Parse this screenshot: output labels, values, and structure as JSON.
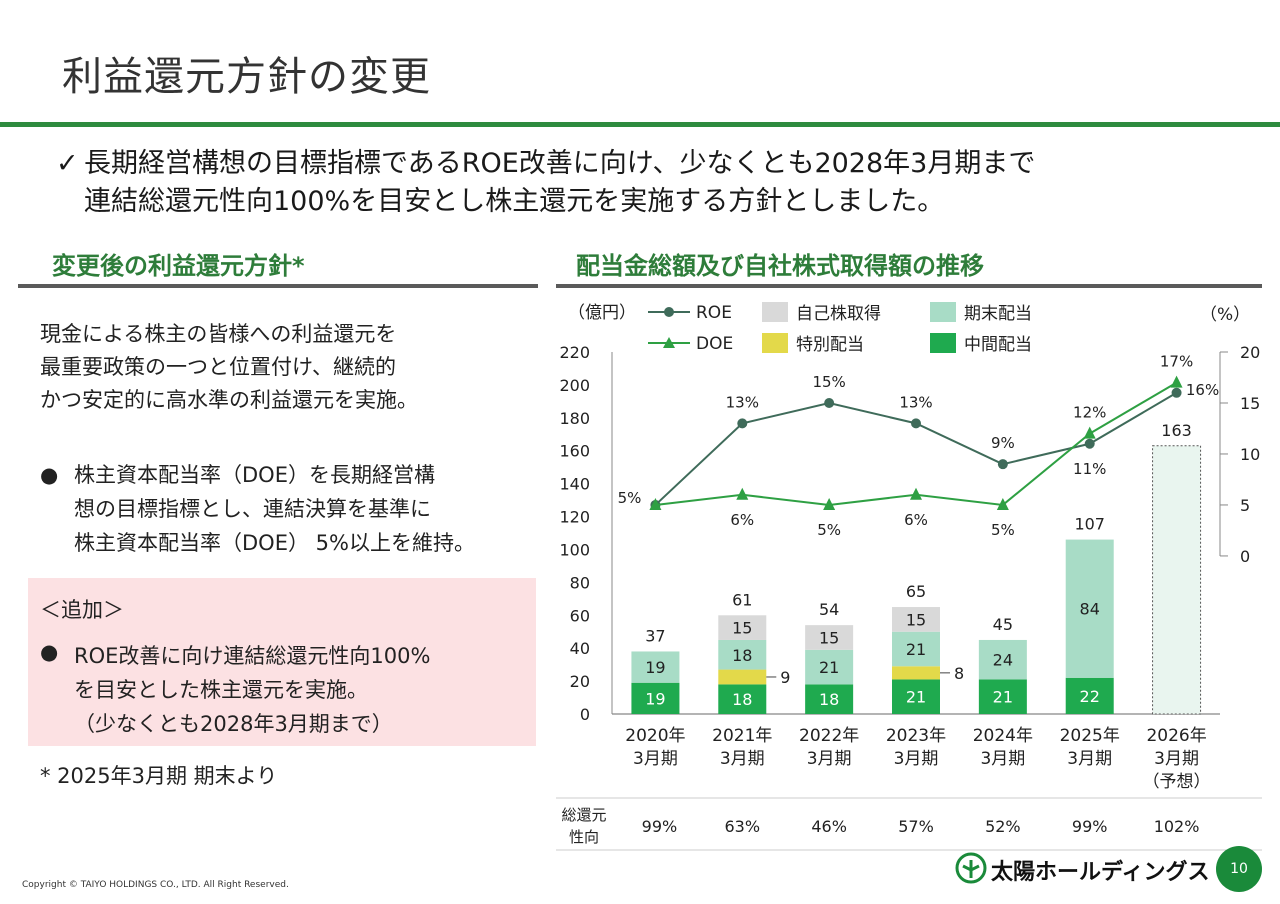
{
  "page": {
    "title": "利益還元方針の変更",
    "lead_line1": "長期経営構想の目標指標であるROE改善に向け、少なくとも2028年3月期まで",
    "lead_line2": "連結総還元性向100%を目安とし株主還元を実施する方針としました。",
    "check_mark": "✓",
    "left_heading": "変更後の利益還元方針*",
    "right_heading": "配当金総額及び自社株式取得額の推移",
    "left_body": [
      "現金による株主の皆様への利益還元を",
      "最重要政策の一つと位置付け、継続的",
      "かつ安定的に高水準の利益還元を実施。"
    ],
    "bullet": "●",
    "doe_bullet": [
      "株主資本配当率（DOE）を長期経営構",
      "想の目標指標とし、連結決算を基準に",
      "株主資本配当率（DOE） 5%以上を維持。"
    ],
    "addition_heading": "＜追加＞",
    "addition_bullet": [
      "ROE改善に向け連結総還元性向100%",
      "を目安とした株主還元を実施。",
      "（少なくとも2028年3月期まで）"
    ],
    "footnote": "* 2025年3月期 期末より",
    "copyright": "Copyright © TAIYO HOLDINGS CO., LTD.  All Right Reserved.",
    "logo_text": "太陽ホールディングス",
    "page_number": "10",
    "accent_color": "#2e8b3e"
  },
  "chart_data": {
    "type": "bar",
    "left_unit": "（億円）",
    "right_unit": "（%）",
    "ylim": [
      0,
      220
    ],
    "y_ticks": [
      0,
      20,
      40,
      60,
      80,
      100,
      120,
      140,
      160,
      180,
      200,
      220
    ],
    "y2_ticks": [
      0,
      5,
      10,
      15,
      20
    ],
    "categories": [
      [
        "2020年",
        "3月期"
      ],
      [
        "2021年",
        "3月期"
      ],
      [
        "2022年",
        "3月期"
      ],
      [
        "2023年",
        "3月期"
      ],
      [
        "2024年",
        "3月期"
      ],
      [
        "2025年",
        "3月期"
      ],
      [
        "2026年",
        "3月期",
        "（予想）"
      ]
    ],
    "series": [
      {
        "name": "中間配当",
        "color": "#1faa4f",
        "values": [
          19,
          18,
          18,
          21,
          21,
          22,
          null
        ],
        "labels": [
          "19",
          "18",
          "18",
          "21",
          "21",
          "22",
          ""
        ]
      },
      {
        "name": "特別配当",
        "color": "#e3d94a",
        "values": [
          0,
          9,
          0,
          8,
          0,
          0,
          null
        ],
        "labels": [
          "",
          "9",
          "",
          "8",
          "",
          "",
          ""
        ]
      },
      {
        "name": "期末配当",
        "color": "#a8dcc6",
        "values": [
          19,
          18,
          21,
          21,
          24,
          84,
          null
        ],
        "labels": [
          "19",
          "18",
          "21",
          "21",
          "24",
          "84",
          ""
        ]
      },
      {
        "name": "自己株取得",
        "color": "#d9d9d9",
        "values": [
          0,
          15,
          15,
          15,
          0,
          0,
          null
        ],
        "labels": [
          "",
          "15",
          "15",
          "15",
          "",
          "",
          ""
        ]
      }
    ],
    "forecast_total": 163,
    "forecast_fill": "#e9f5ef",
    "totals": [
      "37",
      "61",
      "54",
      "65",
      "45",
      "107",
      "163"
    ],
    "lines": [
      {
        "name": "ROE",
        "color": "#3f6b5a",
        "marker": "circle",
        "values": [
          5,
          13,
          15,
          13,
          9,
          11,
          16
        ],
        "labels": [
          "5%",
          "13%",
          "15%",
          "13%",
          "9%",
          "11%",
          "16%"
        ]
      },
      {
        "name": "DOE",
        "color": "#2ea043",
        "marker": "triangle",
        "values": [
          5,
          6,
          5,
          6,
          5,
          12,
          17
        ],
        "labels": [
          "",
          "6%",
          "5%",
          "6%",
          "5%",
          "12%",
          "17%"
        ]
      }
    ],
    "y2lim": [
      -15.5,
      20
    ],
    "payout_label": [
      "総還元",
      "性向"
    ],
    "payout_ratios": [
      "99%",
      "63%",
      "46%",
      "57%",
      "52%",
      "99%",
      "102%"
    ]
  }
}
